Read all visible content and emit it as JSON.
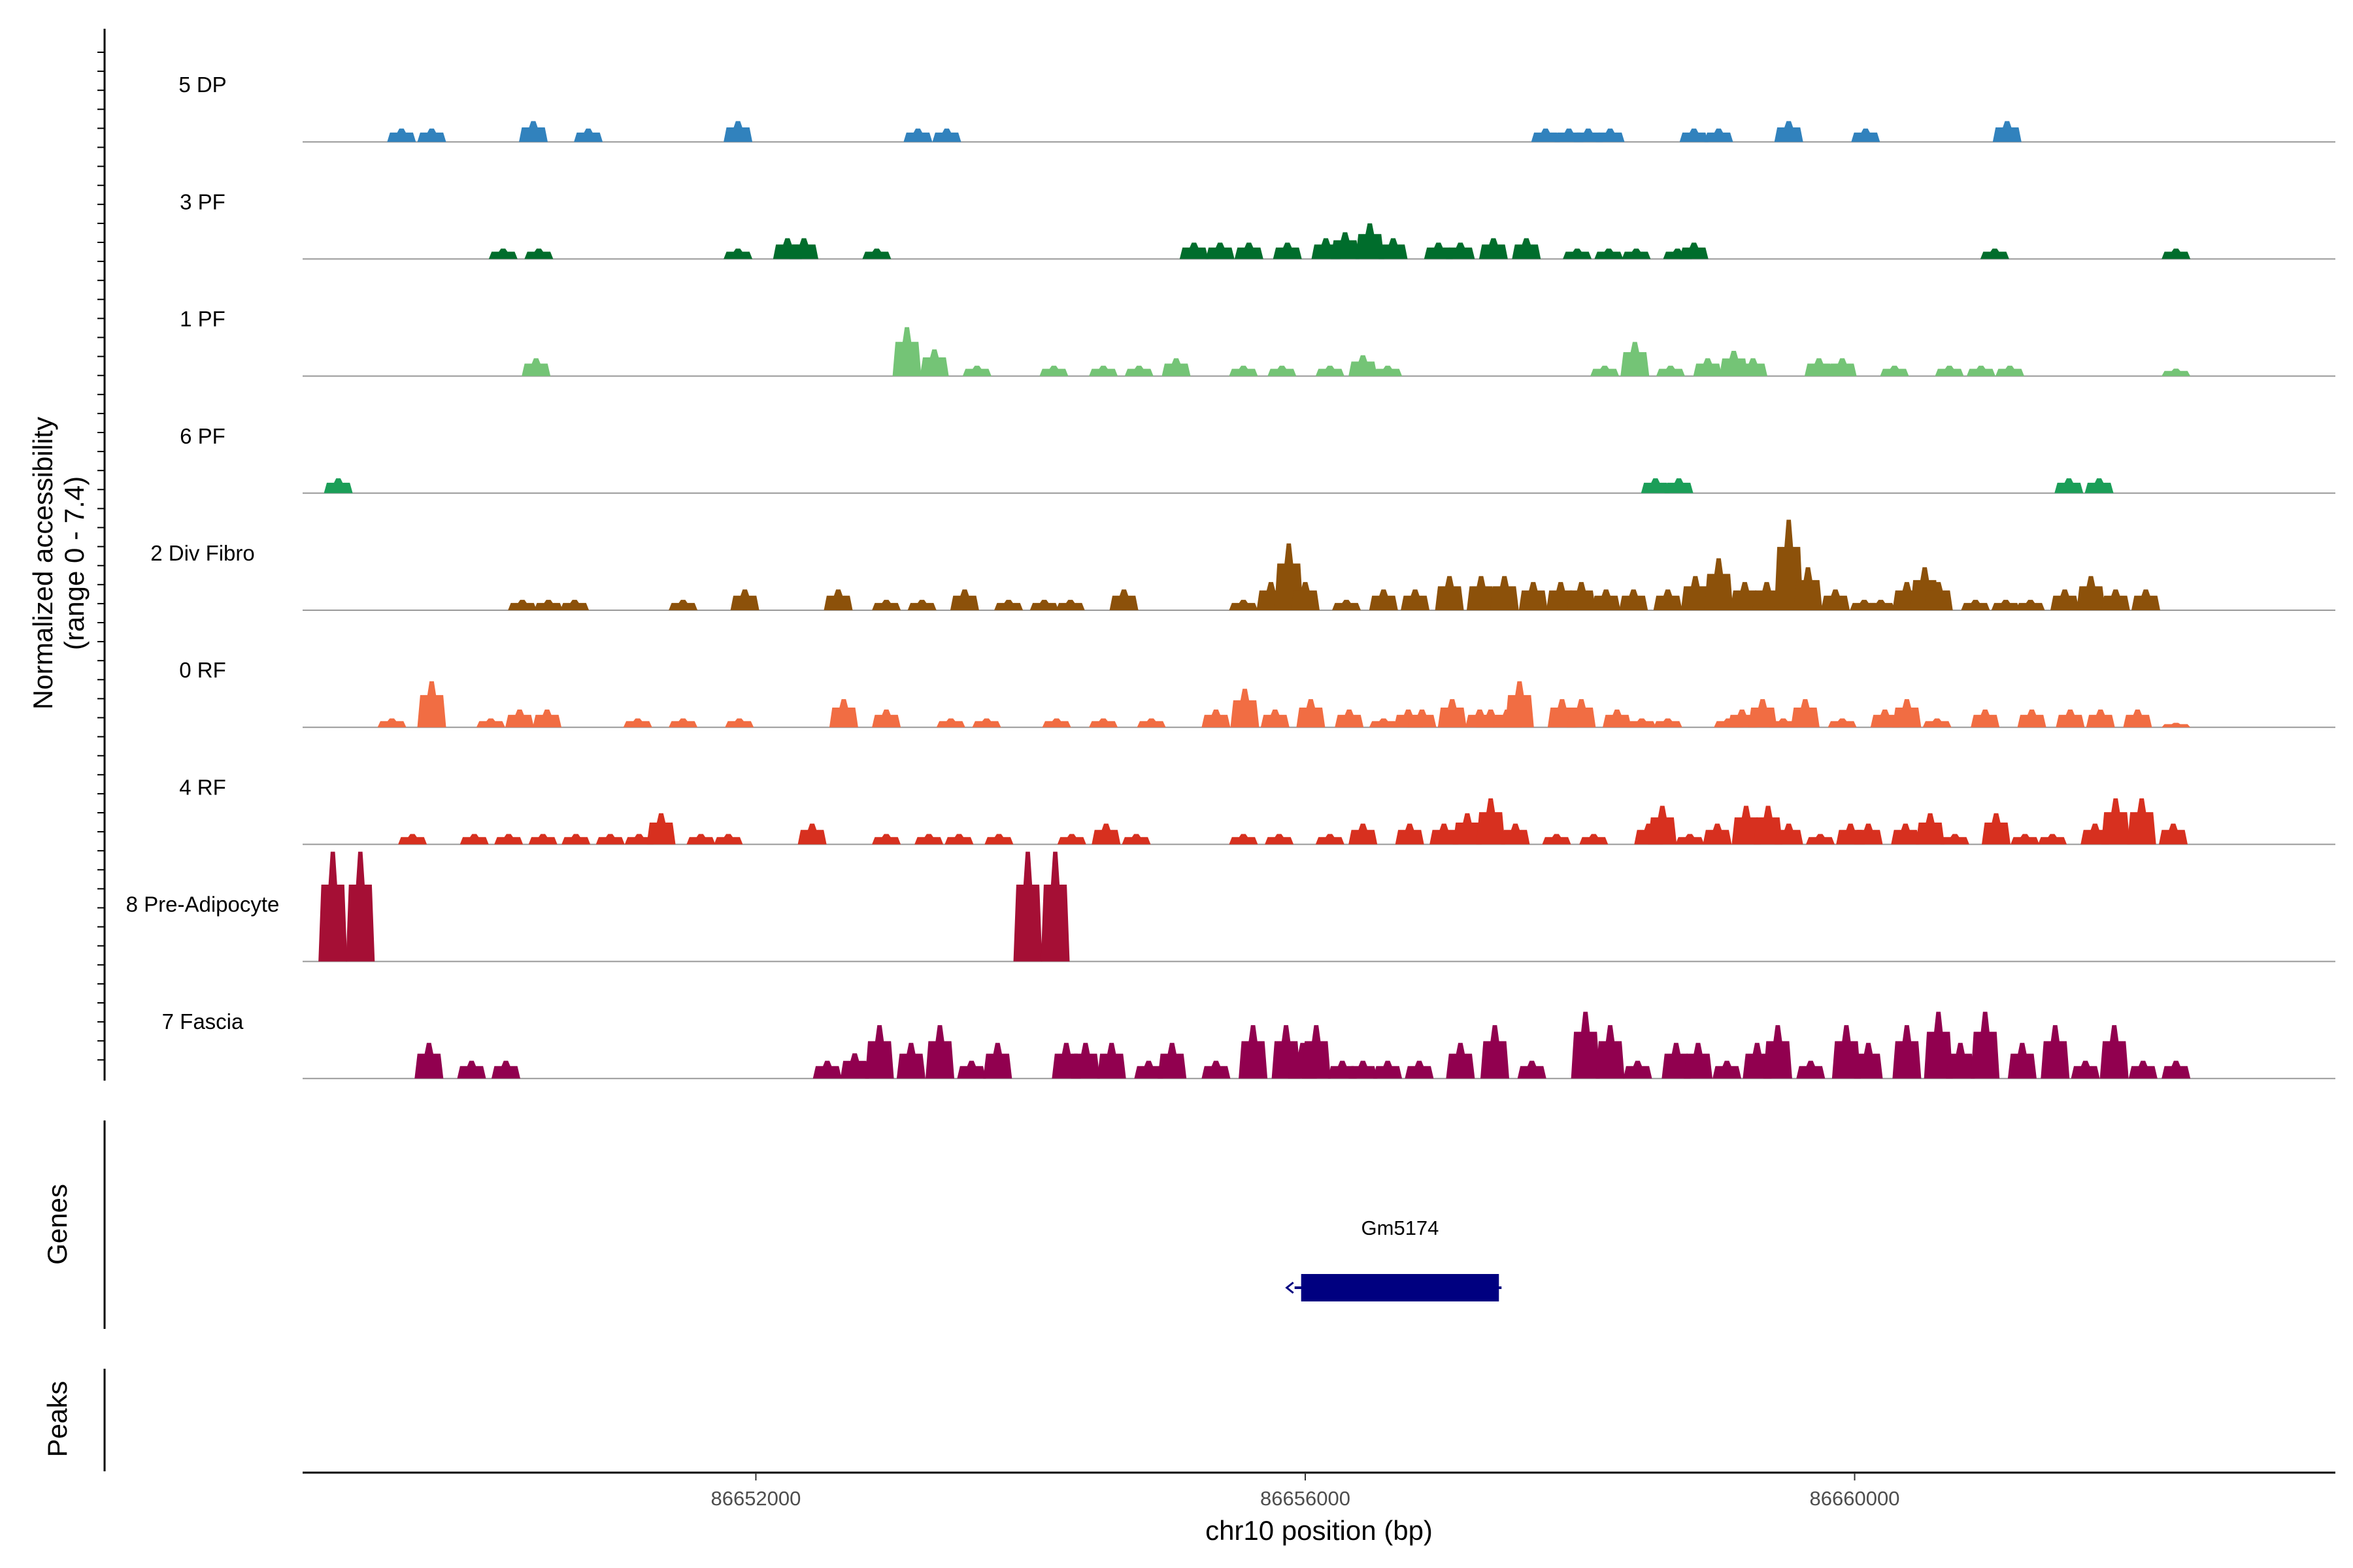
{
  "chart_data": {
    "type": "area",
    "title": "",
    "xlabel": "chr10 position (bp)",
    "ylabel": "Normalized accessibility",
    "ylabel_sub": "(range 0 - 7.4)",
    "xlim": [
      86648700,
      86663500
    ],
    "ylim": [
      0,
      7.4
    ],
    "x_ticks": [
      86652000,
      86656000,
      86660000
    ],
    "x_tick_labels": [
      "86652000",
      "86656000",
      "86660000"
    ],
    "panel_labels": {
      "genes": "Genes",
      "peaks": "Peaks"
    },
    "series": [
      {
        "name": "5 DP",
        "color": "#3182bd",
        "peaks": [
          [
            86649420,
            0.9
          ],
          [
            86649640,
            0.9
          ],
          [
            86650380,
            1.4
          ],
          [
            86650780,
            0.9
          ],
          [
            86651870,
            1.4
          ],
          [
            86653180,
            0.9
          ],
          [
            86653390,
            0.9
          ],
          [
            86657750,
            0.9
          ],
          [
            86657920,
            0.9
          ],
          [
            86658060,
            0.9
          ],
          [
            86658220,
            0.9
          ],
          [
            86658830,
            0.9
          ],
          [
            86659010,
            0.9
          ],
          [
            86659520,
            1.4
          ],
          [
            86660080,
            0.9
          ],
          [
            86661110,
            1.4
          ]
        ]
      },
      {
        "name": "3 PF",
        "color": "#006d2c",
        "peaks": [
          [
            86650160,
            0.7
          ],
          [
            86650420,
            0.7
          ],
          [
            86651870,
            0.7
          ],
          [
            86652230,
            1.4
          ],
          [
            86652350,
            1.4
          ],
          [
            86652880,
            0.7
          ],
          [
            86655190,
            1.1
          ],
          [
            86655380,
            1.1
          ],
          [
            86655590,
            1.1
          ],
          [
            86655870,
            1.1
          ],
          [
            86656150,
            1.4
          ],
          [
            86656290,
            1.8
          ],
          [
            86656470,
            2.4
          ],
          [
            86656640,
            1.4
          ],
          [
            86656970,
            1.1
          ],
          [
            86657130,
            1.1
          ],
          [
            86657370,
            1.4
          ],
          [
            86657610,
            1.4
          ],
          [
            86657980,
            0.7
          ],
          [
            86658210,
            0.7
          ],
          [
            86658410,
            0.7
          ],
          [
            86658710,
            0.7
          ],
          [
            86658830,
            1.1
          ],
          [
            86661020,
            0.7
          ],
          [
            86662340,
            0.7
          ]
        ]
      },
      {
        "name": "1 PF",
        "color": "#74c476",
        "peaks": [
          [
            86650400,
            1.2
          ],
          [
            86653100,
            3.3
          ],
          [
            86653300,
            1.8
          ],
          [
            86653610,
            0.7
          ],
          [
            86654170,
            0.7
          ],
          [
            86654530,
            0.7
          ],
          [
            86654790,
            0.7
          ],
          [
            86655060,
            1.2
          ],
          [
            86655550,
            0.7
          ],
          [
            86655830,
            0.7
          ],
          [
            86656180,
            0.7
          ],
          [
            86656420,
            1.4
          ],
          [
            86656600,
            0.7
          ],
          [
            86658180,
            0.7
          ],
          [
            86658400,
            2.3
          ],
          [
            86658660,
            0.7
          ],
          [
            86658930,
            1.2
          ],
          [
            86659120,
            1.7
          ],
          [
            86659260,
            1.2
          ],
          [
            86659740,
            1.2
          ],
          [
            86659910,
            1.2
          ],
          [
            86660290,
            0.7
          ],
          [
            86660690,
            0.7
          ],
          [
            86660920,
            0.7
          ],
          [
            86661130,
            0.7
          ],
          [
            86662340,
            0.5
          ]
        ]
      },
      {
        "name": "6 PF",
        "color": "#1b9e58",
        "peaks": [
          [
            86648960,
            1.0
          ],
          [
            86658550,
            1.0
          ],
          [
            86658720,
            1.0
          ],
          [
            86661560,
            1.0
          ],
          [
            86661780,
            1.0
          ]
        ]
      },
      {
        "name": "2 Div Fibro",
        "color": "#8c510a",
        "peaks": [
          [
            86650300,
            0.7
          ],
          [
            86650490,
            0.7
          ],
          [
            86650680,
            0.7
          ],
          [
            86651470,
            0.7
          ],
          [
            86651920,
            1.4
          ],
          [
            86652600,
            1.4
          ],
          [
            86652950,
            0.7
          ],
          [
            86653210,
            0.7
          ],
          [
            86653520,
            1.4
          ],
          [
            86653840,
            0.7
          ],
          [
            86654100,
            0.7
          ],
          [
            86654290,
            0.7
          ],
          [
            86654680,
            1.4
          ],
          [
            86655550,
            0.7
          ],
          [
            86655750,
            1.9
          ],
          [
            86655880,
            4.5
          ],
          [
            86656000,
            1.9
          ],
          [
            86656300,
            0.7
          ],
          [
            86656570,
            1.4
          ],
          [
            86656800,
            1.4
          ],
          [
            86657050,
            2.3
          ],
          [
            86657280,
            2.3
          ],
          [
            86657450,
            2.3
          ],
          [
            86657660,
            1.9
          ],
          [
            86657860,
            1.9
          ],
          [
            86658010,
            1.9
          ],
          [
            86658190,
            1.4
          ],
          [
            86658390,
            1.4
          ],
          [
            86658640,
            1.4
          ],
          [
            86658840,
            2.3
          ],
          [
            86659010,
            3.5
          ],
          [
            86659200,
            1.9
          ],
          [
            86659360,
            1.9
          ],
          [
            86659520,
            6.1
          ],
          [
            86659660,
            2.9
          ],
          [
            86659860,
            1.4
          ],
          [
            86660070,
            0.7
          ],
          [
            86660190,
            0.7
          ],
          [
            86660380,
            1.9
          ],
          [
            86660510,
            2.9
          ],
          [
            86660610,
            1.9
          ],
          [
            86660880,
            0.7
          ],
          [
            86661100,
            0.7
          ],
          [
            86661280,
            0.7
          ],
          [
            86661530,
            1.4
          ],
          [
            86661720,
            2.3
          ],
          [
            86661900,
            1.4
          ],
          [
            86662120,
            1.4
          ]
        ]
      },
      {
        "name": "0 RF",
        "color": "#f16d43",
        "peaks": [
          [
            86649350,
            0.6
          ],
          [
            86649640,
            3.1
          ],
          [
            86650070,
            0.6
          ],
          [
            86650280,
            1.2
          ],
          [
            86650480,
            1.2
          ],
          [
            86651140,
            0.6
          ],
          [
            86651470,
            0.6
          ],
          [
            86651880,
            0.6
          ],
          [
            86652640,
            1.9
          ],
          [
            86652950,
            1.2
          ],
          [
            86653420,
            0.6
          ],
          [
            86653680,
            0.6
          ],
          [
            86654190,
            0.6
          ],
          [
            86654530,
            0.6
          ],
          [
            86654880,
            0.6
          ],
          [
            86655350,
            1.2
          ],
          [
            86655560,
            2.6
          ],
          [
            86655780,
            1.2
          ],
          [
            86656040,
            1.9
          ],
          [
            86656320,
            1.2
          ],
          [
            86656570,
            0.6
          ],
          [
            86656750,
            1.2
          ],
          [
            86656850,
            1.2
          ],
          [
            86657070,
            1.9
          ],
          [
            86657270,
            1.2
          ],
          [
            86657350,
            1.2
          ],
          [
            86657470,
            1.2
          ],
          [
            86657560,
            3.1
          ],
          [
            86657870,
            1.9
          ],
          [
            86658010,
            1.9
          ],
          [
            86658270,
            1.2
          ],
          [
            86658450,
            0.6
          ],
          [
            86658640,
            0.6
          ],
          [
            86659080,
            0.6
          ],
          [
            86659180,
            1.2
          ],
          [
            86659330,
            1.9
          ],
          [
            86659480,
            0.6
          ],
          [
            86659640,
            1.9
          ],
          [
            86659910,
            0.6
          ],
          [
            86660220,
            1.2
          ],
          [
            86660380,
            1.9
          ],
          [
            86660600,
            0.6
          ],
          [
            86660950,
            1.2
          ],
          [
            86661290,
            1.2
          ],
          [
            86661570,
            1.2
          ],
          [
            86661790,
            1.2
          ],
          [
            86662060,
            1.2
          ],
          [
            86662340,
            0.3
          ]
        ]
      },
      {
        "name": "4 RF",
        "color": "#d7301f",
        "peaks": [
          [
            86649500,
            0.7
          ],
          [
            86649950,
            0.7
          ],
          [
            86650200,
            0.7
          ],
          [
            86650450,
            0.7
          ],
          [
            86650690,
            0.7
          ],
          [
            86650940,
            0.7
          ],
          [
            86651150,
            0.7
          ],
          [
            86651310,
            2.1
          ],
          [
            86651600,
            0.7
          ],
          [
            86651800,
            0.7
          ],
          [
            86652410,
            1.4
          ],
          [
            86652950,
            0.7
          ],
          [
            86653260,
            0.7
          ],
          [
            86653480,
            0.7
          ],
          [
            86653770,
            0.7
          ],
          [
            86654300,
            0.7
          ],
          [
            86654550,
            1.4
          ],
          [
            86654770,
            0.7
          ],
          [
            86655550,
            0.7
          ],
          [
            86655810,
            0.7
          ],
          [
            86656180,
            0.7
          ],
          [
            86656420,
            1.4
          ],
          [
            86656760,
            1.4
          ],
          [
            86657010,
            1.4
          ],
          [
            86657180,
            2.1
          ],
          [
            86657350,
            3.1
          ],
          [
            86657530,
            1.4
          ],
          [
            86657830,
            0.7
          ],
          [
            86658100,
            0.7
          ],
          [
            86658500,
            1.4
          ],
          [
            86658600,
            2.6
          ],
          [
            86658800,
            0.7
          ],
          [
            86659000,
            1.4
          ],
          [
            86659210,
            2.6
          ],
          [
            86659370,
            2.6
          ],
          [
            86659520,
            1.4
          ],
          [
            86659750,
            0.7
          ],
          [
            86659970,
            1.4
          ],
          [
            86660100,
            1.4
          ],
          [
            86660370,
            1.4
          ],
          [
            86660550,
            2.1
          ],
          [
            86660730,
            0.7
          ],
          [
            86661030,
            2.1
          ],
          [
            86661240,
            0.7
          ],
          [
            86661440,
            0.7
          ],
          [
            86661750,
            1.4
          ],
          [
            86661900,
            3.1
          ],
          [
            86662090,
            3.1
          ],
          [
            86662320,
            1.4
          ]
        ]
      },
      {
        "name": "8 Pre-Adipocyte",
        "color": "#a50f35",
        "peaks": [
          [
            86648920,
            7.4
          ],
          [
            86649120,
            7.4
          ],
          [
            86653980,
            7.4
          ],
          [
            86654180,
            7.4
          ]
        ]
      },
      {
        "name": "7 Fascia",
        "color": "#91004f",
        "peaks": [
          [
            86649620,
            2.4
          ],
          [
            86649930,
            1.2
          ],
          [
            86650180,
            1.2
          ],
          [
            86652520,
            1.2
          ],
          [
            86652720,
            1.7
          ],
          [
            86652900,
            3.6
          ],
          [
            86653130,
            2.4
          ],
          [
            86653340,
            3.6
          ],
          [
            86653570,
            1.2
          ],
          [
            86653760,
            2.4
          ],
          [
            86654260,
            2.4
          ],
          [
            86654400,
            2.4
          ],
          [
            86654590,
            2.4
          ],
          [
            86654860,
            1.2
          ],
          [
            86655030,
            2.4
          ],
          [
            86655350,
            1.2
          ],
          [
            86655620,
            3.6
          ],
          [
            86655860,
            3.6
          ],
          [
            86655980,
            2.4
          ],
          [
            86656080,
            3.6
          ],
          [
            86656270,
            1.2
          ],
          [
            86656420,
            1.2
          ],
          [
            86656600,
            1.2
          ],
          [
            86656830,
            1.2
          ],
          [
            86657130,
            2.4
          ],
          [
            86657380,
            3.6
          ],
          [
            86657650,
            1.2
          ],
          [
            86658040,
            4.5
          ],
          [
            86658220,
            3.6
          ],
          [
            86658420,
            1.2
          ],
          [
            86658700,
            2.4
          ],
          [
            86658860,
            2.4
          ],
          [
            86659070,
            1.2
          ],
          [
            86659290,
            2.4
          ],
          [
            86659440,
            3.6
          ],
          [
            86659680,
            1.2
          ],
          [
            86659940,
            3.6
          ],
          [
            86660100,
            2.4
          ],
          [
            86660380,
            3.6
          ],
          [
            86660610,
            4.5
          ],
          [
            86660770,
            2.4
          ],
          [
            86660950,
            4.5
          ],
          [
            86661220,
            2.4
          ],
          [
            86661460,
            3.6
          ],
          [
            86661680,
            1.2
          ],
          [
            86661890,
            3.6
          ],
          [
            86662100,
            1.2
          ],
          [
            86662340,
            1.2
          ]
        ]
      }
    ],
    "genes": [
      {
        "name": "Gm5174",
        "start": 86655970,
        "end": 86657410,
        "strand": "-"
      }
    ],
    "peaks_track": []
  }
}
